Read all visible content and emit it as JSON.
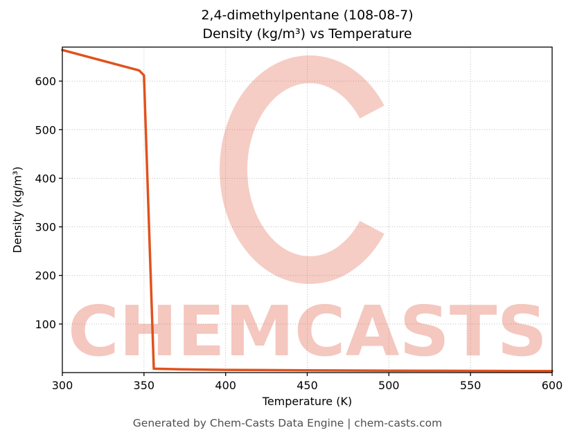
{
  "header": {
    "title_line1": "2,4-dimethylpentane (108-08-7)",
    "title_line2": "Density (kg/m³) vs Temperature"
  },
  "footer": {
    "text": "Generated by Chem-Casts Data Engine | chem-casts.com"
  },
  "watermark": {
    "text": "CHEMCASTS",
    "color": "#dc4a30"
  },
  "chart_data": {
    "type": "line",
    "title": "2,4-dimethylpentane (108-08-7) Density (kg/m³) vs Temperature",
    "xlabel": "Temperature (K)",
    "ylabel": "Density (kg/m³)",
    "xlim": [
      300,
      600
    ],
    "ylim": [
      0,
      670
    ],
    "x_ticks": [
      300,
      350,
      400,
      450,
      500,
      550,
      600
    ],
    "y_ticks": [
      100,
      200,
      300,
      400,
      500,
      600
    ],
    "grid": true,
    "legend": "none",
    "line_color": "#e0521d",
    "series": [
      {
        "name": "Density",
        "points": [
          [
            300,
            664
          ],
          [
            347,
            622
          ],
          [
            350,
            612
          ],
          [
            356,
            8
          ],
          [
            375,
            6.5
          ],
          [
            400,
            5.5
          ],
          [
            450,
            4.6
          ],
          [
            500,
            4.0
          ],
          [
            550,
            3.5
          ],
          [
            600,
            3.2
          ]
        ]
      }
    ]
  }
}
